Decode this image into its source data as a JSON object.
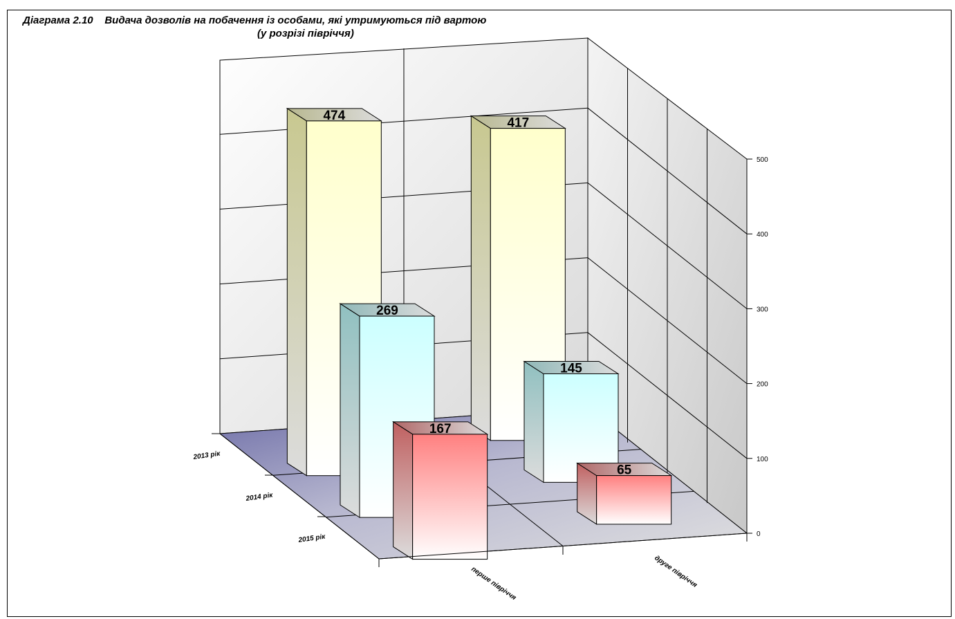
{
  "chart_data": {
    "type": "bar",
    "title_line1": "Діаграма 2.10    Видача дозволів на побачення із особами, які утримуються під вартою",
    "title_line2": "(у розрізі півріччя)",
    "categories": [
      "перше півріччя",
      "друге півріччя"
    ],
    "series": [
      {
        "name": "2013 рік",
        "values": [
          474,
          417
        ]
      },
      {
        "name": "2014 рік",
        "values": [
          269,
          145
        ]
      },
      {
        "name": "2015 рік",
        "values": [
          167,
          65
        ]
      }
    ],
    "ylim": [
      0,
      500
    ],
    "yticks": [
      "0",
      "100",
      "200",
      "300",
      "400",
      "500"
    ],
    "colors": {
      "2013 рік": "#ffffcc",
      "2014 рік": "#ccffff",
      "2015 рік": "#ff8080",
      "floor": "#9999cc"
    },
    "grid": true,
    "projection": "3d"
  }
}
